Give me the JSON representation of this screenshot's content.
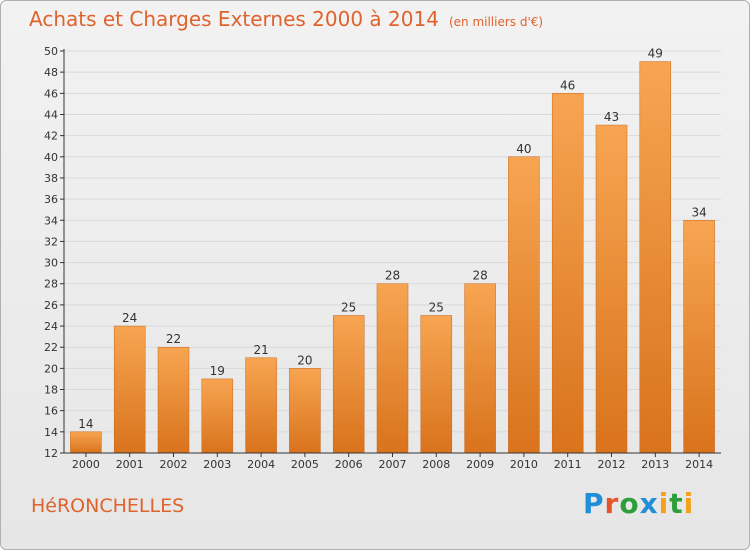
{
  "title": "Achats et Charges Externes 2000 à 2014",
  "unit_label": "(en milliers d'€)",
  "commune": "HéRONCHELLES",
  "logo": [
    "P",
    "r",
    "o",
    "x",
    "i",
    "t",
    "i"
  ],
  "colors": {
    "bar_light": "#f7a552",
    "bar_dark": "#d9731c",
    "title": "#e0622c",
    "grid": "#d9d9d9",
    "axis": "#333333"
  },
  "chart_data": {
    "type": "bar",
    "title": "Achats et Charges Externes 2000 à 2014",
    "unit": "(en milliers d'€)",
    "categories": [
      "2000",
      "2001",
      "2002",
      "2003",
      "2004",
      "2005",
      "2006",
      "2007",
      "2008",
      "2009",
      "2010",
      "2011",
      "2012",
      "2013",
      "2014"
    ],
    "values": [
      14,
      24,
      22,
      19,
      21,
      20,
      25,
      28,
      25,
      28,
      40,
      46,
      43,
      49,
      34
    ],
    "ylim": [
      12,
      50
    ],
    "yticks": [
      12,
      14,
      16,
      18,
      20,
      22,
      24,
      26,
      28,
      30,
      32,
      34,
      36,
      38,
      40,
      42,
      44,
      46,
      48,
      50
    ],
    "grid": true,
    "data_labels": true
  }
}
